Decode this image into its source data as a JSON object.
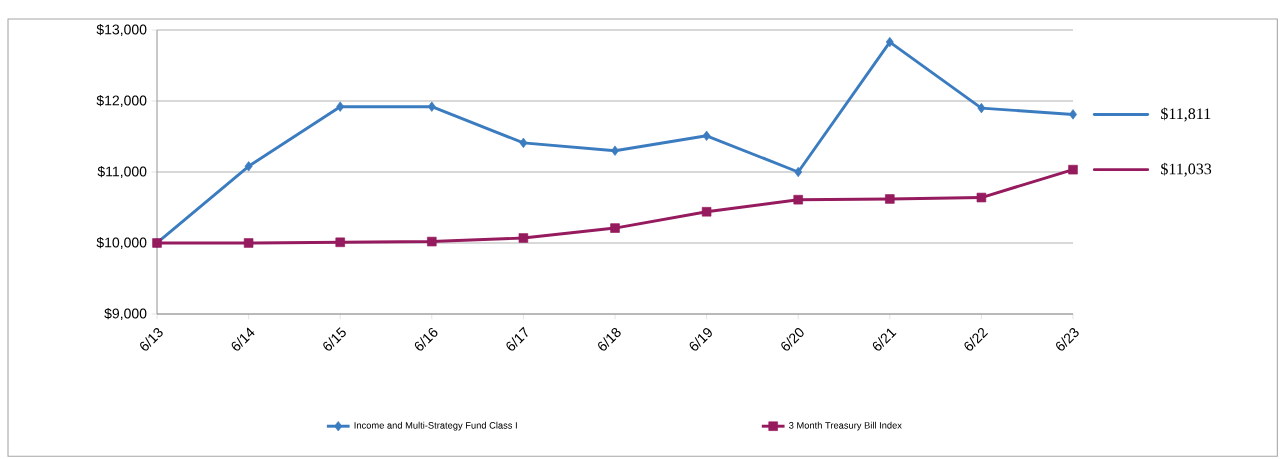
{
  "chart_data": {
    "type": "line",
    "categories": [
      "6/13",
      "6/14",
      "6/15",
      "6/16",
      "6/17",
      "6/18",
      "6/19",
      "6/20",
      "6/21",
      "6/22",
      "6/23"
    ],
    "series": [
      {
        "name": "Income and Multi-Strategy Fund Class I",
        "color": "#3b7cc0",
        "marker": "diamond",
        "values": [
          10000,
          11080,
          11920,
          11920,
          11410,
          11300,
          11510,
          11000,
          12830,
          11900,
          11811
        ]
      },
      {
        "name": "3 Month Treasury Bill Index",
        "color": "#951b5e",
        "marker": "square",
        "values": [
          10000,
          10000,
          10010,
          10020,
          10070,
          10210,
          10440,
          10610,
          10620,
          10640,
          11033
        ]
      }
    ],
    "ylim": [
      9000,
      13000
    ],
    "yticks": [
      {
        "value": 9000,
        "label": "$9,000"
      },
      {
        "value": 10000,
        "label": "$10,000"
      },
      {
        "value": 11000,
        "label": "$11,000"
      },
      {
        "value": 12000,
        "label": "$12,000"
      },
      {
        "value": 13000,
        "label": "$13,000"
      }
    ],
    "grid": "y",
    "legend": "bottom",
    "line_style": "solid",
    "annotations": [
      "$11,811",
      "$11,033"
    ]
  }
}
